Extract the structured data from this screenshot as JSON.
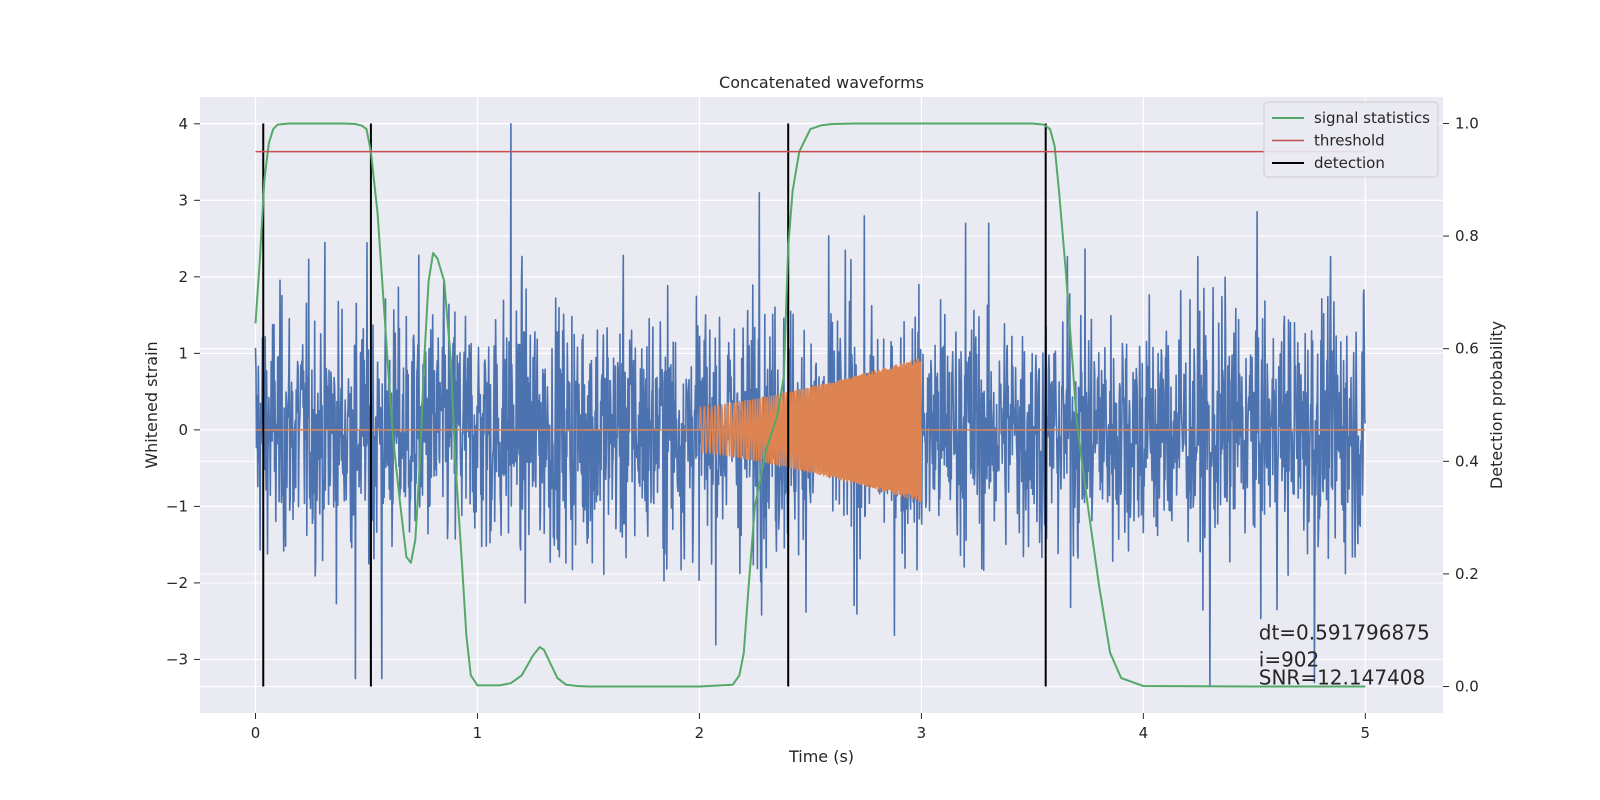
{
  "chart_data": {
    "type": "line",
    "title": "Concatenated waveforms",
    "xlabel": "Time (s)",
    "ylabel": "Whitened strain",
    "ylabel_right": "Detection probability",
    "xlim": [
      -0.25,
      5.35
    ],
    "ylim": [
      -3.7,
      4.35
    ],
    "ylim_right": [
      -0.047,
      1.047
    ],
    "x_ticks": [
      0,
      1,
      2,
      3,
      4,
      5
    ],
    "x_tick_labels": [
      "0",
      "1",
      "2",
      "3",
      "4",
      "5"
    ],
    "y_ticks": [
      -3,
      -2,
      -1,
      0,
      1,
      2,
      3,
      4
    ],
    "y_tick_labels": [
      "−3",
      "−2",
      "−1",
      "0",
      "1",
      "2",
      "3",
      "4"
    ],
    "y_right_ticks": [
      0.0,
      0.2,
      0.4,
      0.6,
      0.8,
      1.0
    ],
    "y_right_tick_labels": [
      "0.0",
      "0.2",
      "0.4",
      "0.6",
      "0.8",
      "1.0"
    ],
    "grid": true,
    "legend_position": "top-right",
    "colors": {
      "background": "#eaeaf2",
      "grid": "#ffffff",
      "strain": "#4c72b0",
      "injection": "#dd8452",
      "signal_statistics": "#55a868",
      "threshold": "#c44e52",
      "detection": "#000000"
    },
    "series": [
      {
        "name": "signal statistics",
        "axis": "right",
        "x": [
          0.0,
          0.02,
          0.04,
          0.06,
          0.08,
          0.1,
          0.15,
          0.2,
          0.3,
          0.4,
          0.45,
          0.48,
          0.5,
          0.52,
          0.55,
          0.6,
          0.62,
          0.65,
          0.68,
          0.7,
          0.72,
          0.74,
          0.76,
          0.78,
          0.8,
          0.82,
          0.85,
          0.88,
          0.9,
          0.93,
          0.95,
          0.97,
          1.0,
          1.1,
          1.15,
          1.2,
          1.25,
          1.28,
          1.3,
          1.33,
          1.36,
          1.4,
          1.45,
          1.5,
          1.8,
          2.0,
          2.15,
          2.18,
          2.2,
          2.22,
          2.25,
          2.3,
          2.35,
          2.38,
          2.4,
          2.42,
          2.45,
          2.5,
          2.55,
          2.6,
          2.7,
          3.0,
          3.3,
          3.5,
          3.55,
          3.58,
          3.6,
          3.62,
          3.65,
          3.68,
          3.7,
          3.75,
          3.8,
          3.85,
          3.9,
          4.0,
          4.5,
          5.0
        ],
        "y": [
          0.645,
          0.76,
          0.9,
          0.965,
          0.99,
          0.998,
          1.0,
          1.0,
          1.0,
          1.0,
          0.999,
          0.996,
          0.99,
          0.95,
          0.84,
          0.55,
          0.44,
          0.33,
          0.23,
          0.22,
          0.26,
          0.39,
          0.58,
          0.72,
          0.77,
          0.76,
          0.72,
          0.58,
          0.4,
          0.22,
          0.09,
          0.02,
          0.002,
          0.002,
          0.006,
          0.02,
          0.055,
          0.07,
          0.065,
          0.04,
          0.015,
          0.003,
          0.001,
          0.0,
          0.0,
          0.0,
          0.003,
          0.02,
          0.06,
          0.17,
          0.32,
          0.42,
          0.48,
          0.55,
          0.78,
          0.88,
          0.95,
          0.99,
          0.997,
          0.999,
          1.0,
          1.0,
          1.0,
          1.0,
          0.998,
          0.99,
          0.96,
          0.88,
          0.74,
          0.58,
          0.47,
          0.32,
          0.18,
          0.06,
          0.015,
          0.001,
          0.0,
          0.0
        ]
      },
      {
        "name": "threshold",
        "axis": "right",
        "x": [
          0.0,
          5.0
        ],
        "y": [
          0.95,
          0.95
        ]
      },
      {
        "name": "detection",
        "axis": "right",
        "x": [
          0.035,
          0.52,
          2.4,
          3.56
        ],
        "y_range": [
          0.0,
          1.0
        ]
      }
    ],
    "strain": {
      "axis": "left",
      "x_range": [
        0.0,
        5.0
      ],
      "typical_amplitude": 1.2,
      "envelope": [
        -2.2,
        2.5
      ],
      "extremes": [
        {
          "x": 1.15,
          "y": 4.0
        },
        {
          "x": 0.45,
          "y": -3.25
        },
        {
          "x": 0.52,
          "y": -3.3
        },
        {
          "x": 0.57,
          "y": -3.25
        },
        {
          "x": 4.3,
          "y": -3.35
        },
        {
          "x": 2.27,
          "y": 3.1
        },
        {
          "x": 4.77,
          "y": -3.3
        },
        {
          "x": 3.2,
          "y": 2.7
        }
      ]
    },
    "injection": {
      "axis": "left",
      "x_range": [
        2.0,
        3.0
      ],
      "amplitude_start": 0.3,
      "amplitude_end": 0.95,
      "baseline_x_range": [
        0.0,
        5.0
      ],
      "baseline_y": 0.0
    },
    "annotations": [
      {
        "text": "dt=0.591796875",
        "x": 4.52,
        "y": 0.08
      },
      {
        "text": " i=902",
        "x": 4.52,
        "y": 0.032
      },
      {
        "text": "SNR=12.147408",
        "x": 4.52,
        "y": 0.0
      }
    ]
  }
}
